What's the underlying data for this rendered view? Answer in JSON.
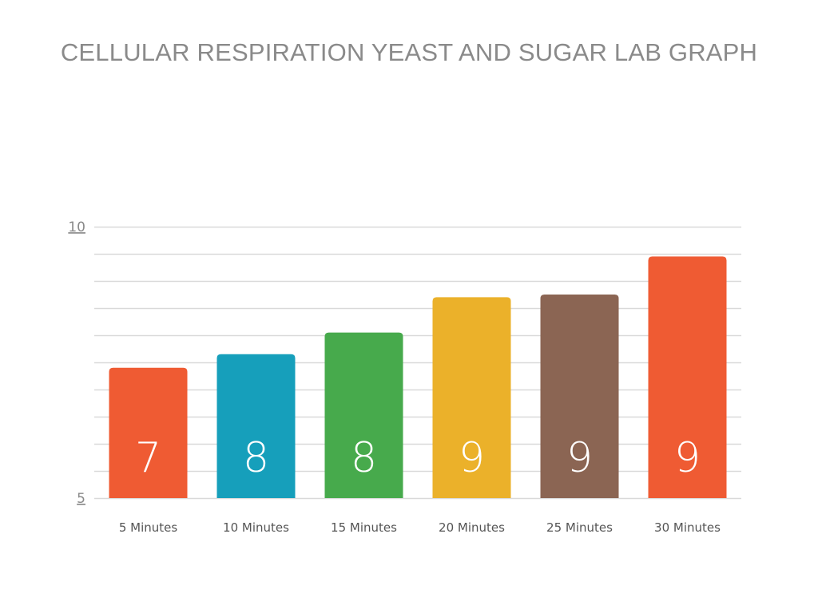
{
  "chart_data": {
    "type": "bar",
    "title": "CELLULAR RESPIRATION YEAST AND SUGAR LAB GRAPH",
    "categories": [
      "5 Minutes",
      "10 Minutes",
      "15 Minutes",
      "20 Minutes",
      "25 Minutes",
      "30 Minutes"
    ],
    "values": [
      7.4,
      7.65,
      8.05,
      8.7,
      8.75,
      9.45
    ],
    "data_labels": [
      "7",
      "8",
      "8",
      "9",
      "9",
      "9"
    ],
    "colors": [
      "#ef5b33",
      "#169fbb",
      "#47aa4c",
      "#ebb12a",
      "#8b6553",
      "#ef5b33"
    ],
    "ylim": [
      5,
      10
    ],
    "yticks": [
      5,
      10
    ],
    "ytick_labels": [
      "5",
      "10"
    ],
    "gridlines": true,
    "grid_step": 0.5,
    "xlabel": "",
    "ylabel": "",
    "legend": "none"
  },
  "colors": {
    "gridline": "#d9d9d9",
    "title": "#8a8a8a"
  }
}
